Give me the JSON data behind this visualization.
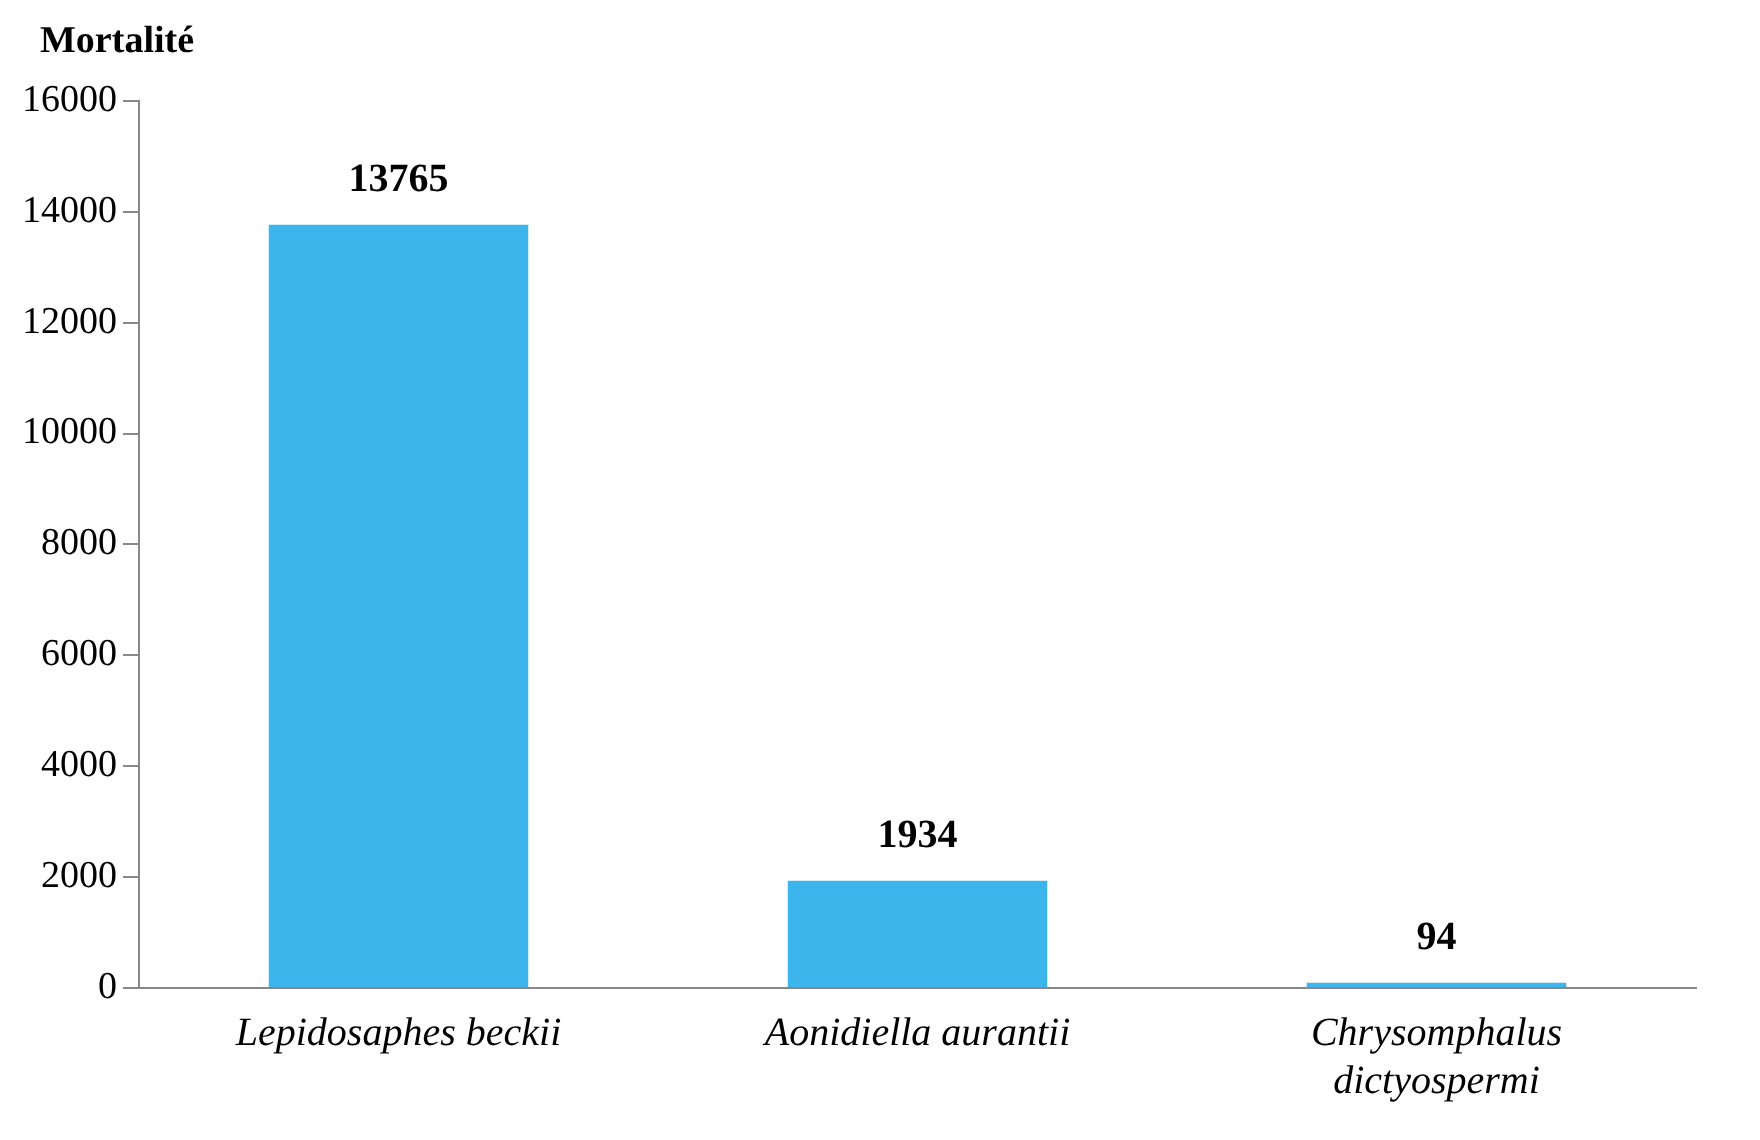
{
  "chart_data": {
    "type": "bar",
    "ylabel": "Mortalité",
    "categories": [
      "Lepidosaphes beckii",
      "Aonidiella aurantii",
      "Chrysomphalus dictyospermi"
    ],
    "values": [
      13765,
      1934,
      94
    ],
    "color": "#3cb4ec",
    "ylim": [
      0,
      16000
    ],
    "yticks": [
      0,
      2000,
      4000,
      6000,
      8000,
      10000,
      12000,
      14000,
      16000
    ],
    "data_labels": true,
    "grid": false,
    "legend": false
  }
}
